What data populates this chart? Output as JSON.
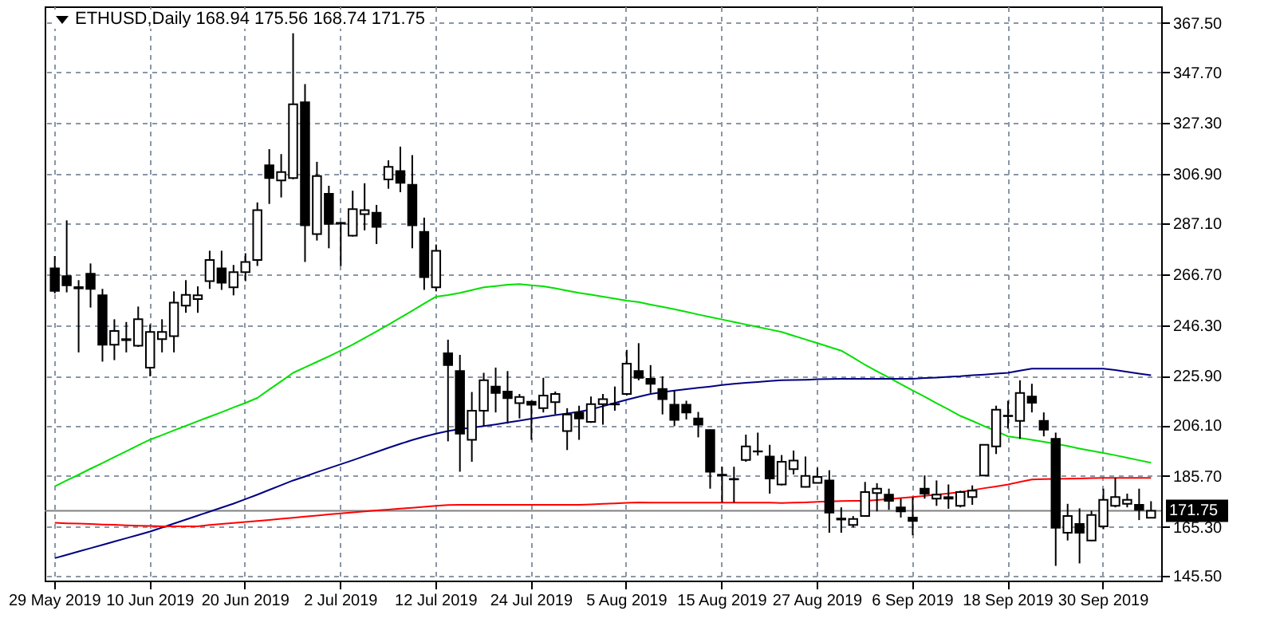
{
  "chart_data": {
    "type": "candlestick",
    "title": "ETHUSD,Daily  168.94 175.56 168.74 171.75",
    "categories": [
      "29 May 2019",
      null,
      null,
      null,
      null,
      null,
      null,
      null,
      "10 Jun 2019",
      null,
      null,
      null,
      null,
      null,
      null,
      null,
      "20 Jun 2019",
      null,
      null,
      null,
      null,
      null,
      null,
      null,
      "2 Jul 2019",
      null,
      null,
      null,
      null,
      null,
      null,
      null,
      "12 Jul 2019",
      null,
      null,
      null,
      null,
      null,
      null,
      null,
      "24 Jul 2019",
      null,
      null,
      null,
      null,
      null,
      null,
      null,
      "5 Aug 2019",
      null,
      null,
      null,
      null,
      null,
      null,
      null,
      "15 Aug 2019",
      null,
      null,
      null,
      null,
      null,
      null,
      null,
      "27 Aug 2019",
      null,
      null,
      null,
      null,
      null,
      null,
      null,
      "6 Sep 2019",
      null,
      null,
      null,
      null,
      null,
      null,
      null,
      "18 Sep 2019",
      null,
      null,
      null,
      null,
      null,
      null,
      null,
      "30 Sep 2019",
      null,
      null,
      null,
      null
    ],
    "ohlc": [
      [
        269,
        274,
        259,
        260
      ],
      [
        265.9,
        288.3,
        259.4,
        262.2
      ],
      [
        261.5,
        264.3,
        235.3,
        261.0
      ],
      [
        266.9,
        271.0,
        253.3,
        260.8
      ],
      [
        258.2,
        260.8,
        231.6,
        238.4
      ],
      [
        238.4,
        248.6,
        232.2,
        243.9
      ],
      [
        240.6,
        247.5,
        235.3,
        240.2
      ],
      [
        238.0,
        253.7,
        237.5,
        248.6
      ],
      [
        229.2,
        246.5,
        225.7,
        243.5
      ],
      [
        240.6,
        248.6,
        235.3,
        243.5
      ],
      [
        241.8,
        259.8,
        235.3,
        255.3
      ],
      [
        254.1,
        264.3,
        251.2,
        258.4
      ],
      [
        256.7,
        261.8,
        251.2,
        258.2
      ],
      [
        263.9,
        276.1,
        260.8,
        272.4
      ],
      [
        269.0,
        276.1,
        260.4,
        263.3
      ],
      [
        261.4,
        270.4,
        258.2,
        267.5
      ],
      [
        267.5,
        275.1,
        263.9,
        271.6
      ],
      [
        272.4,
        295.5,
        270.0,
        292.4
      ],
      [
        310.4,
        316.9,
        294.9,
        305.3
      ],
      [
        304.3,
        314.9,
        297.5,
        307.7
      ],
      [
        305.3,
        363.4,
        304.8,
        334.9
      ],
      [
        335.7,
        343.0,
        271.6,
        286.3
      ],
      [
        282.8,
        311.8,
        280.2,
        306.1
      ],
      [
        299.0,
        302.2,
        277.1,
        286.9
      ],
      [
        287.3,
        287.5,
        270.0,
        287.0
      ],
      [
        282.2,
        300.2,
        281.8,
        292.8
      ],
      [
        290.8,
        303.2,
        284.3,
        292.4
      ],
      [
        291.4,
        294.5,
        278.8,
        285.7
      ],
      [
        304.7,
        312.4,
        301.0,
        309.8
      ],
      [
        308.1,
        317.9,
        299.6,
        303.4
      ],
      [
        302.6,
        314.5,
        277.1,
        286.3
      ],
      [
        283.7,
        289.4,
        260.4,
        265.5
      ],
      [
        261.4,
        278.6,
        259.8,
        276.1
      ],
      [
        234.9,
        240.4,
        199.6,
        230.2
      ],
      [
        227.8,
        234.3,
        187.4,
        202.7
      ],
      [
        200.2,
        219.4,
        191.4,
        211.9
      ],
      [
        211.9,
        227.1,
        205.7,
        224.1
      ],
      [
        221.6,
        229.2,
        211.2,
        219.0
      ],
      [
        219.6,
        227.8,
        206.7,
        216.9
      ],
      [
        214.9,
        218.6,
        208.8,
        217.4
      ],
      [
        215.5,
        215.9,
        200.2,
        214.3
      ],
      [
        212.9,
        225.1,
        211.2,
        218.0
      ],
      [
        215.3,
        219.6,
        210.4,
        218.6
      ],
      [
        203.7,
        212.9,
        196.1,
        210.4
      ],
      [
        211.2,
        213.9,
        200.2,
        208.8
      ],
      [
        207.4,
        217.6,
        207.0,
        214.5
      ],
      [
        214.5,
        218.6,
        206.3,
        216.5
      ],
      [
        214.6,
        221.6,
        211.9,
        214.4
      ],
      [
        218.6,
        236.3,
        218.0,
        230.8
      ],
      [
        227.8,
        239.0,
        224.1,
        225.1
      ],
      [
        224.7,
        230.2,
        219.0,
        222.7
      ],
      [
        220.6,
        225.7,
        210.4,
        216.5
      ],
      [
        214.3,
        220.0,
        205.7,
        208.2
      ],
      [
        214.3,
        215.9,
        208.4,
        211.2
      ],
      [
        208.8,
        211.4,
        201.2,
        206.3
      ],
      [
        204.1,
        204.3,
        180.6,
        187.4
      ],
      [
        186.2,
        189.4,
        175.1,
        185.9
      ],
      [
        184.5,
        189.4,
        175.1,
        184.3
      ],
      [
        192.1,
        202.3,
        191.4,
        197.6
      ],
      [
        195.6,
        203.1,
        193.9,
        195.5
      ],
      [
        193.5,
        198.2,
        178.6,
        184.7
      ],
      [
        182.3,
        194.1,
        181.9,
        191.4
      ],
      [
        188.4,
        195.9,
        186.3,
        191.9
      ],
      [
        181.3,
        193.5,
        181.1,
        185.7
      ],
      [
        182.9,
        189.0,
        182.7,
        185.3
      ],
      [
        183.9,
        188.0,
        162.9,
        171.0
      ],
      [
        168.6,
        173.1,
        162.9,
        168.2
      ],
      [
        166.0,
        169.6,
        165.0,
        168.4
      ],
      [
        169.6,
        183.3,
        169.4,
        179.2
      ],
      [
        178.8,
        182.8,
        171.5,
        180.6
      ],
      [
        178.2,
        180.6,
        172.1,
        175.7
      ],
      [
        173.1,
        176.6,
        169.0,
        171.5
      ],
      [
        169.0,
        177.2,
        161.9,
        167.6
      ],
      [
        180.6,
        185.9,
        176.6,
        178.6
      ],
      [
        176.6,
        183.9,
        173.7,
        178.2
      ],
      [
        177.2,
        182.3,
        172.5,
        176.6
      ],
      [
        173.7,
        179.8,
        173.1,
        179.2
      ],
      [
        177.2,
        181.9,
        174.1,
        179.8
      ],
      [
        185.9,
        198.4,
        185.7,
        198.2
      ],
      [
        197.6,
        213.9,
        194.5,
        212.3
      ],
      [
        209.9,
        215.9,
        204.7,
        209.7
      ],
      [
        207.8,
        224.1,
        200.6,
        219.0
      ],
      [
        217.6,
        222.7,
        211.2,
        215.1
      ],
      [
        207.8,
        211.2,
        201.6,
        204.3
      ],
      [
        200.6,
        203.1,
        149.6,
        164.9
      ],
      [
        162.9,
        174.5,
        159.8,
        169.6
      ],
      [
        166.4,
        172.7,
        150.6,
        162.9
      ],
      [
        159.8,
        171.7,
        159.6,
        170.0
      ],
      [
        165.5,
        180.6,
        164.3,
        176.1
      ],
      [
        173.7,
        184.9,
        173.1,
        177.2
      ],
      [
        174.5,
        178.6,
        173.1,
        176.1
      ],
      [
        174.1,
        180.6,
        168.0,
        172.1
      ],
      [
        168.94,
        175.56,
        168.74,
        171.75
      ]
    ],
    "series": [
      {
        "type": "line",
        "color": "#00e000",
        "values": [
          181.5,
          183.9,
          186.2,
          188.6,
          190.9,
          193.3,
          195.6,
          198.0,
          200.3,
          202.1,
          204.0,
          205.8,
          207.7,
          209.5,
          211.3,
          213.2,
          215.0,
          217.0,
          220.4,
          223.7,
          227.1,
          229.3,
          231.5,
          233.7,
          236.0,
          238.4,
          241.1,
          243.7,
          246.4,
          249.2,
          252.0,
          254.9,
          257.7,
          258.3,
          259.2,
          260.3,
          261.4,
          261.9,
          262.5,
          262.7,
          262.2,
          261.8,
          261.0,
          260.1,
          259.2,
          258.5,
          257.7,
          256.9,
          256.1,
          255.5,
          254.5,
          253.6,
          252.6,
          251.6,
          250.5,
          249.5,
          248.5,
          247.5,
          246.5,
          245.5,
          244.5,
          243.5,
          242.0,
          240.5,
          239.0,
          237.5,
          236.0,
          233.2,
          230.3,
          227.7,
          225.2,
          222.6,
          220.0,
          217.5,
          214.9,
          212.4,
          209.8,
          207.8,
          205.7,
          203.7,
          201.6,
          200.9,
          200.2,
          199.4,
          198.6,
          197.7,
          196.7,
          195.8,
          194.9,
          194.0,
          193.0,
          192.0,
          191.0
        ]
      },
      {
        "type": "line",
        "color": "#000080",
        "values": [
          152.7,
          154.0,
          155.4,
          156.7,
          158.0,
          159.4,
          160.7,
          162.0,
          163.4,
          165.0,
          166.6,
          168.2,
          169.8,
          171.4,
          173.0,
          174.6,
          176.4,
          178.2,
          180.1,
          182.0,
          183.9,
          185.5,
          187.2,
          188.8,
          190.4,
          192.0,
          193.7,
          195.3,
          197.0,
          198.6,
          200.1,
          201.5,
          202.7,
          203.7,
          204.5,
          205.1,
          205.7,
          206.4,
          207.2,
          207.9,
          208.7,
          209.4,
          210.1,
          210.8,
          211.5,
          212.4,
          213.7,
          215.0,
          216.3,
          217.5,
          218.6,
          219.3,
          220.0,
          220.5,
          221.1,
          221.6,
          222.2,
          222.7,
          223.1,
          223.4,
          223.8,
          224.1,
          224.2,
          224.3,
          224.5,
          224.6,
          224.7,
          224.7,
          224.7,
          224.7,
          224.7,
          224.7,
          224.7,
          225.0,
          225.2,
          225.5,
          225.7,
          226.1,
          226.4,
          226.8,
          227.1,
          228.0,
          228.8,
          228.8,
          228.8,
          228.8,
          228.8,
          228.8,
          228.8,
          228.2,
          227.5,
          226.8,
          226.1
        ]
      },
      {
        "type": "line",
        "color": "#ff0000",
        "values": [
          166.9,
          166.7,
          166.6,
          166.4,
          166.2,
          166.1,
          165.9,
          165.7,
          165.6,
          165.5,
          165.5,
          165.5,
          165.5,
          166.0,
          166.4,
          166.8,
          167.2,
          167.6,
          168.0,
          168.5,
          168.9,
          169.4,
          169.8,
          170.3,
          170.7,
          171.1,
          171.5,
          171.9,
          172.2,
          172.6,
          172.9,
          173.3,
          173.7,
          174.0,
          174.1,
          174.1,
          174.1,
          174.1,
          174.1,
          174.1,
          174.1,
          174.1,
          174.1,
          174.1,
          174.1,
          174.3,
          174.5,
          174.7,
          174.9,
          175.1,
          175.0,
          175.0,
          175.0,
          175.0,
          175.0,
          175.0,
          175.0,
          175.0,
          175.0,
          175.0,
          175.0,
          174.8,
          175.0,
          175.1,
          175.3,
          175.5,
          175.6,
          175.7,
          175.7,
          176.0,
          176.4,
          176.8,
          177.2,
          177.7,
          178.2,
          178.7,
          179.2,
          180.0,
          180.8,
          181.5,
          182.3,
          183.3,
          184.3,
          184.4,
          184.5,
          184.6,
          184.7,
          184.8,
          184.9,
          184.9,
          184.9,
          184.9,
          184.9
        ]
      }
    ],
    "ylim": [
      143.7,
      374.2
    ],
    "yticks": [
      {
        "value": 145.5,
        "label": "145.50"
      },
      {
        "value": 165.3,
        "label": "165.30"
      },
      {
        "value": 185.7,
        "label": "185.70"
      },
      {
        "value": 206.1,
        "label": "206.10"
      },
      {
        "value": 225.9,
        "label": "225.90"
      },
      {
        "value": 246.3,
        "label": "246.30"
      },
      {
        "value": 266.7,
        "label": "266.70"
      },
      {
        "value": 287.1,
        "label": "287.10"
      },
      {
        "value": 306.9,
        "label": "306.90"
      },
      {
        "value": 327.3,
        "label": "327.30"
      },
      {
        "value": 347.7,
        "label": "347.70"
      },
      {
        "value": 367.5,
        "label": "367.50"
      }
    ],
    "ref_lines": [
      {
        "axis": "y",
        "value": 171.75,
        "label": "171.75",
        "color": "#808080"
      }
    ],
    "grid": true
  }
}
